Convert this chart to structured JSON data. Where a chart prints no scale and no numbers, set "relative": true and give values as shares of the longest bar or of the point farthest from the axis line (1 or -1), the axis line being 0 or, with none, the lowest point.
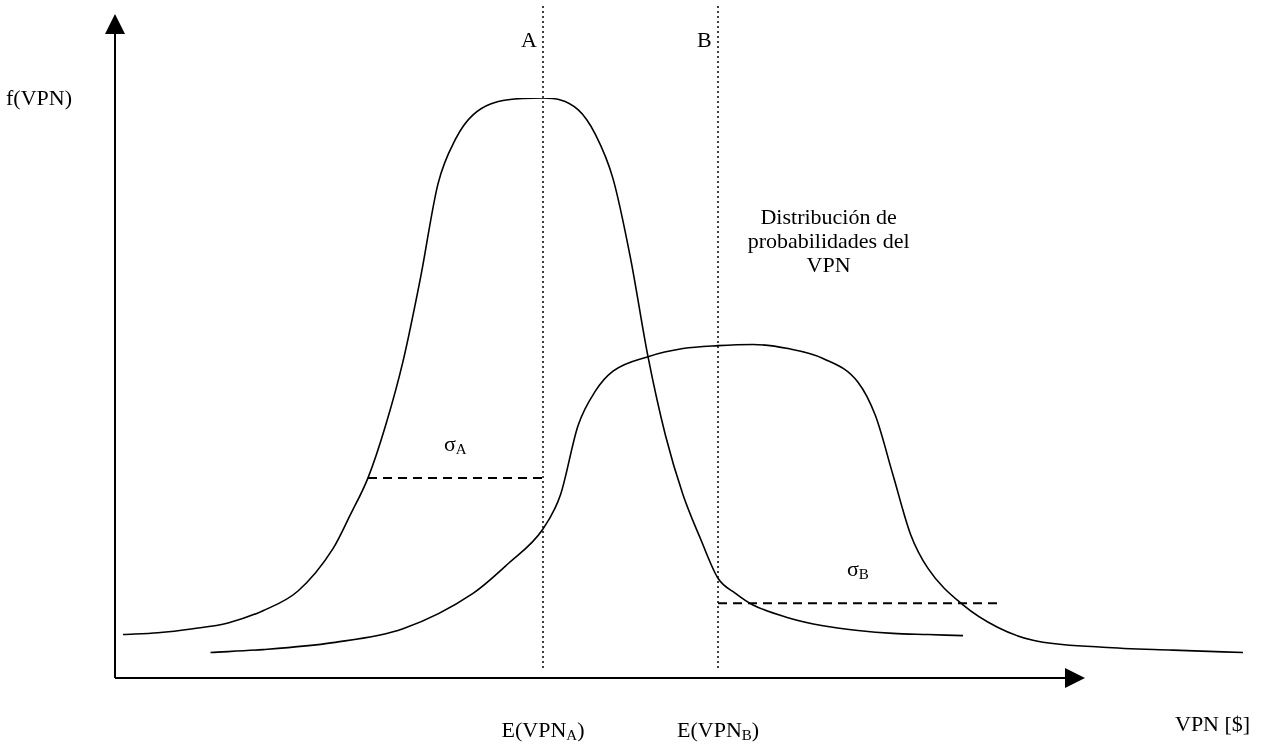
{
  "chart_data": {
    "type": "line",
    "relative": true,
    "xlabel": "VPN [$]",
    "ylabel": "f(VPN)",
    "categories": [
      null,
      null,
      null,
      null,
      null,
      null,
      null,
      null,
      null,
      null,
      null,
      null,
      null,
      null,
      null,
      null,
      null,
      null,
      null,
      null,
      null,
      null,
      null,
      null,
      "E(VPN$_{A}$)",
      null,
      null,
      null,
      null,
      null,
      null,
      null,
      null,
      null,
      "E(VPN$_{B}$)",
      null,
      null,
      null,
      null,
      null,
      null,
      null,
      null,
      null,
      null,
      null,
      null,
      null,
      null,
      null,
      null,
      null,
      null,
      null,
      null,
      null,
      null,
      null,
      null,
      null,
      null,
      null,
      null,
      null,
      null
    ],
    "series": [
      {
        "color": "#000000",
        "line_style": "solid",
        "values": [
          0.075,
          null,
          0.078,
          null,
          0.085,
          null,
          0.095,
          null,
          0.116,
          null,
          0.15,
          null,
          0.223,
          0.282,
          0.345,
          0.435,
          0.546,
          0.69,
          0.852,
          0.929,
          0.971,
          null,
          0.997,
          null,
          1.0,
          null,
          0.98,
          0.937,
          0.861,
          0.724,
          0.554,
          0.418,
          0.316,
          0.24,
          0.172,
          0.146,
          0.126,
          null,
          0.104,
          null,
          0.09,
          null,
          0.082,
          null,
          0.077,
          null,
          0.075,
          null,
          0.073,
          null,
          null,
          null,
          null,
          null,
          null,
          null,
          null,
          null,
          null,
          null,
          null,
          null,
          null,
          null,
          null
        ]
      },
      {
        "color": "#000000",
        "line_style": "solid",
        "values": [
          null,
          null,
          null,
          null,
          null,
          0.044,
          null,
          null,
          0.049,
          null,
          null,
          null,
          0.061,
          null,
          null,
          null,
          0.085,
          null,
          null,
          null,
          0.146,
          null,
          0.197,
          null,
          0.257,
          0.316,
          0.435,
          0.495,
          0.529,
          null,
          0.554,
          null,
          0.568,
          null,
          0.573,
          null,
          0.575,
          null,
          0.568,
          null,
          0.551,
          null,
          0.51,
          0.452,
          0.35,
          0.248,
          0.189,
          null,
          0.126,
          null,
          0.087,
          null,
          0.065,
          null,
          null,
          null,
          0.053,
          null,
          null,
          null,
          0.048,
          null,
          null,
          null,
          0.044
        ]
      },
      {
        "name": "σ$_{A}$",
        "color": "#000000",
        "line_style": "dashed",
        "values": [
          null,
          null,
          null,
          null,
          null,
          null,
          null,
          null,
          null,
          null,
          null,
          null,
          null,
          null,
          0.345,
          null,
          null,
          null,
          null,
          null,
          null,
          null,
          null,
          null,
          0.345,
          null,
          null,
          null,
          null,
          null,
          null,
          null,
          null,
          null,
          null,
          null,
          null,
          null,
          null,
          null,
          null,
          null,
          null,
          null,
          null,
          null,
          null,
          null,
          null,
          null,
          null,
          null,
          null,
          null,
          null,
          null,
          null,
          null,
          null,
          null,
          null,
          null,
          null,
          null,
          null
        ]
      },
      {
        "name": "σ$_{B}$",
        "color": "#000000",
        "line_style": "dashed",
        "values": [
          null,
          null,
          null,
          null,
          null,
          null,
          null,
          null,
          null,
          null,
          null,
          null,
          null,
          null,
          null,
          null,
          null,
          null,
          null,
          null,
          null,
          null,
          null,
          null,
          null,
          null,
          null,
          null,
          null,
          null,
          null,
          null,
          null,
          null,
          0.129,
          null,
          null,
          null,
          null,
          null,
          null,
          null,
          null,
          null,
          null,
          null,
          null,
          null,
          null,
          null,
          0.129,
          null,
          null,
          null,
          null,
          null,
          null,
          null,
          null,
          null,
          null,
          null,
          null,
          null,
          null
        ]
      }
    ],
    "ref_lines": [
      {
        "axis": "x",
        "value": "E(VPN$_{A}$)",
        "label": "A",
        "color": "#000000",
        "line_style": "dotted"
      },
      {
        "axis": "x",
        "value": "E(VPN$_{B}$)",
        "label": "B",
        "color": "#000000",
        "line_style": "dotted"
      }
    ],
    "annotations": [
      "Distribución de probabilidades del VPN"
    ],
    "marker": "none",
    "grid": false,
    "legend": false
  }
}
